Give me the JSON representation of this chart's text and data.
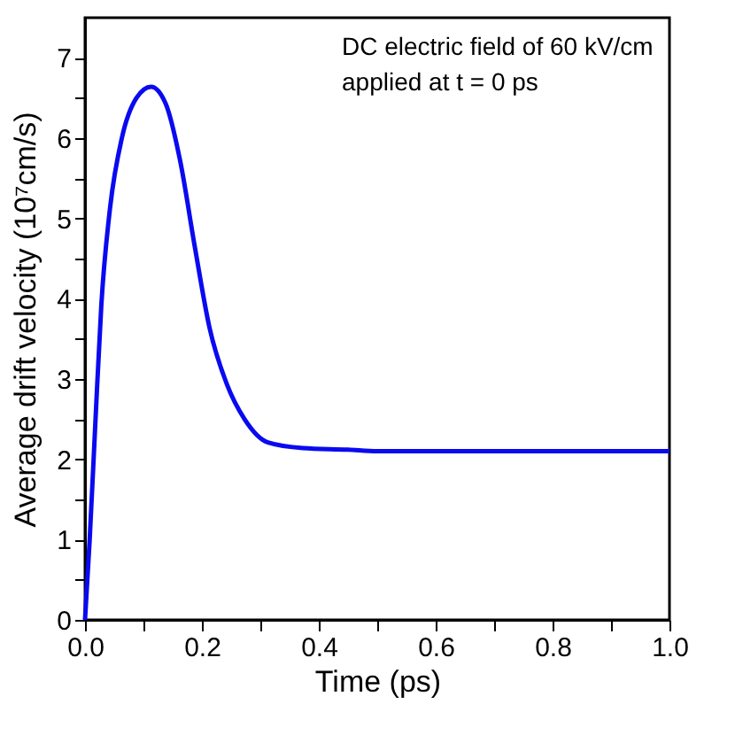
{
  "chart_data": {
    "type": "line",
    "xlabel": "Time (ps)",
    "ylabel": "Average drift velocity (10⁷cm/s)",
    "annotations": [
      "DC electric field of 60 kV/cm",
      "applied at t = 0 ps"
    ],
    "x": [
      0,
      0.008,
      0.018,
      0.028,
      0.043,
      0.063,
      0.088,
      0.113,
      0.138,
      0.163,
      0.188,
      0.213,
      0.243,
      0.273,
      0.313,
      0.373,
      0.45,
      0.5,
      1.0
    ],
    "series": [
      {
        "color": "#0a0af0",
        "values": [
          0,
          1.0,
          2.5,
          3.93,
          5.14,
          6.0,
          6.5,
          6.64,
          6.43,
          5.71,
          4.64,
          3.64,
          2.93,
          2.5,
          2.21,
          2.14,
          2.12,
          2.1,
          2.1
        ]
      }
    ],
    "xlim": [
      0,
      1.0
    ],
    "ylim": [
      0,
      7.5
    ],
    "xticks": [
      {
        "value": 0,
        "label": "0.0"
      },
      {
        "value": 0.1,
        "label": null
      },
      {
        "value": 0.2,
        "label": "0.2"
      },
      {
        "value": 0.3,
        "label": null
      },
      {
        "value": 0.4,
        "label": "0.4"
      },
      {
        "value": 0.5,
        "label": null
      },
      {
        "value": 0.6,
        "label": "0.6"
      },
      {
        "value": 0.7,
        "label": null
      },
      {
        "value": 0.8,
        "label": "0.8"
      },
      {
        "value": 0.9,
        "label": null
      },
      {
        "value": 1.0,
        "label": "1.0"
      }
    ],
    "yticks": [
      0,
      {
        "value": 0.5,
        "label": null
      },
      1,
      {
        "value": 1.5,
        "label": null
      },
      2,
      {
        "value": 2.5,
        "label": null
      },
      3,
      {
        "value": 3.5,
        "label": null
      },
      4,
      {
        "value": 4.5,
        "label": null
      },
      5,
      {
        "value": 5.5,
        "label": null
      },
      6,
      {
        "value": 6.5,
        "label": null
      },
      7
    ],
    "grid": false,
    "marker": "none",
    "line_style": "solid"
  }
}
